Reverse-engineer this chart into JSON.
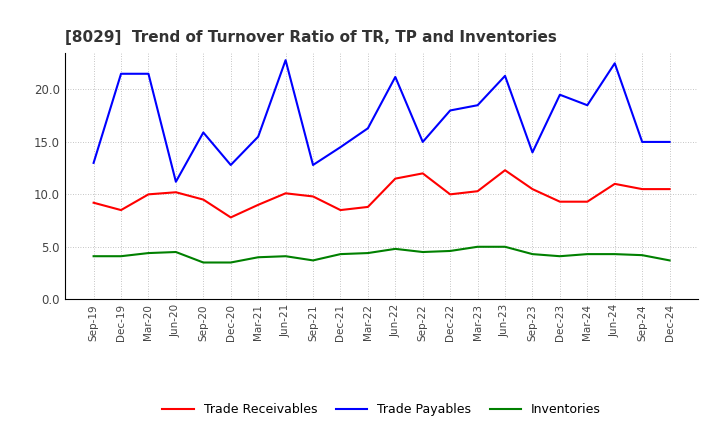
{
  "title": "[8029]  Trend of Turnover Ratio of TR, TP and Inventories",
  "x_labels": [
    "Sep-19",
    "Dec-19",
    "Mar-20",
    "Jun-20",
    "Sep-20",
    "Dec-20",
    "Mar-21",
    "Jun-21",
    "Sep-21",
    "Dec-21",
    "Mar-22",
    "Jun-22",
    "Sep-22",
    "Dec-22",
    "Mar-23",
    "Jun-23",
    "Sep-23",
    "Dec-23",
    "Mar-24",
    "Jun-24",
    "Sep-24",
    "Dec-24"
  ],
  "trade_receivables": [
    9.2,
    8.5,
    10.0,
    10.2,
    9.5,
    7.8,
    9.0,
    10.1,
    9.8,
    8.5,
    8.8,
    11.5,
    12.0,
    10.0,
    10.3,
    12.3,
    10.5,
    9.3,
    9.3,
    11.0,
    10.5,
    10.5
  ],
  "trade_payables": [
    13.0,
    21.5,
    21.5,
    11.2,
    15.9,
    12.8,
    15.5,
    22.8,
    12.8,
    14.5,
    16.3,
    21.2,
    15.0,
    18.0,
    18.5,
    21.3,
    14.0,
    19.5,
    18.5,
    22.5,
    15.0,
    15.0
  ],
  "inventories": [
    4.1,
    4.1,
    4.4,
    4.5,
    3.5,
    3.5,
    4.0,
    4.1,
    3.7,
    4.3,
    4.4,
    4.8,
    4.5,
    4.6,
    5.0,
    5.0,
    4.3,
    4.1,
    4.3,
    4.3,
    4.2,
    3.7
  ],
  "ylim": [
    0.0,
    23.5
  ],
  "yticks": [
    0.0,
    5.0,
    10.0,
    15.0,
    20.0
  ],
  "color_tr": "#FF0000",
  "color_tp": "#0000FF",
  "color_inv": "#008000",
  "legend_tr": "Trade Receivables",
  "legend_tp": "Trade Payables",
  "legend_inv": "Inventories",
  "bg_color": "#FFFFFF",
  "grid_color": "#AAAAAA",
  "title_fontsize": 11,
  "legend_fontsize": 9,
  "tick_label_color": "#444444"
}
